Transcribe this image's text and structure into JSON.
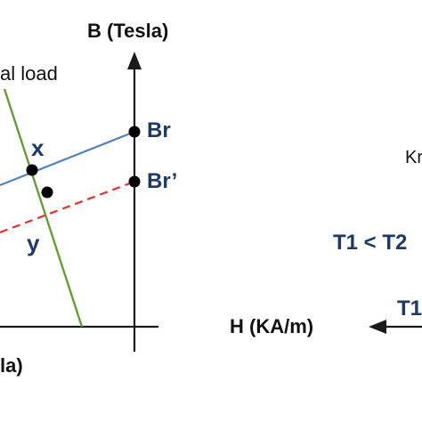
{
  "labels": {
    "b_axis": "B (Tesla)",
    "h_axis": "H (KA/m)",
    "load_line": "al load",
    "bottom_left": "la)",
    "br": "Br",
    "br_prime": "Br’",
    "x_point": "x",
    "y_point": "y",
    "kr_partial": "Kr",
    "temp_compare": "T1 < T2",
    "t1_partial": "T1"
  },
  "colors": {
    "axis": "#1a1a1a",
    "blue_line": "#4f81bd",
    "red_dashed": "#e03030",
    "green_line": "#6a9a3a",
    "navy_text": "#1f3864",
    "black_text": "#111111"
  }
}
